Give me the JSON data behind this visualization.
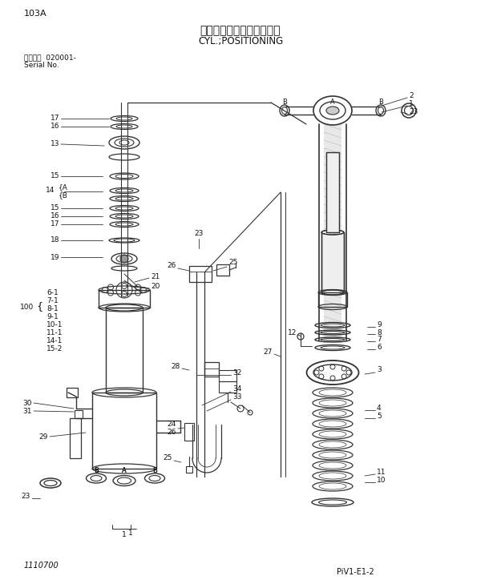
{
  "title_jp": "シリンダ；ボジショニング",
  "title_en": "CYL.;POSITIONING",
  "page_code": "103A",
  "serial_info_jp": "適用号機  020001-",
  "serial_info_en": "Serial No.",
  "bottom_left": "1110700",
  "bottom_right": "PiV1-E1-2",
  "bg_color": "#ffffff",
  "line_color": "#333333",
  "text_color": "#111111"
}
